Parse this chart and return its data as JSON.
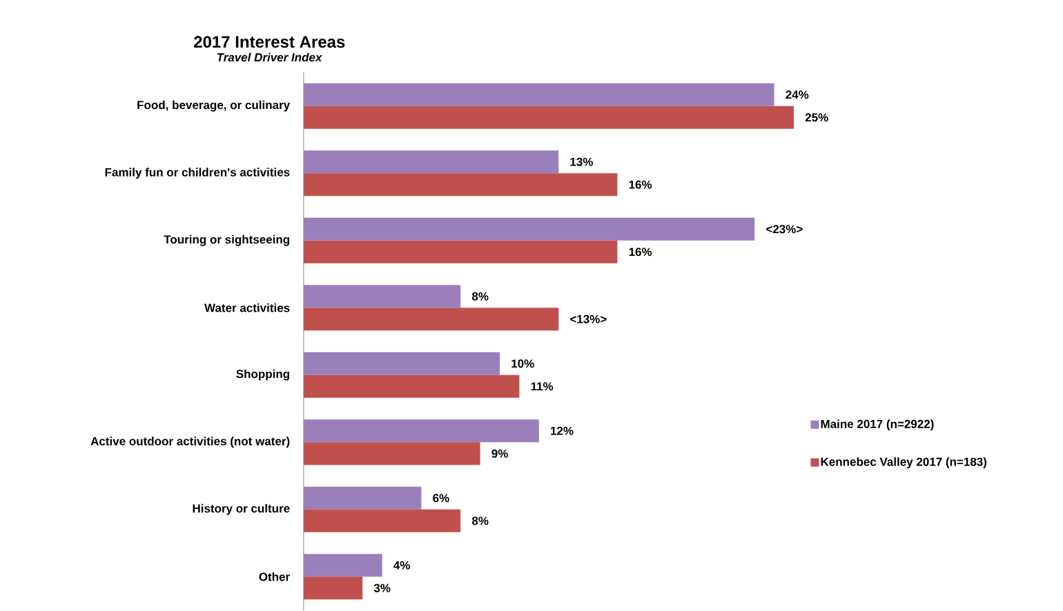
{
  "chart_data": {
    "type": "bar",
    "orientation": "horizontal",
    "title": "2017 Interest Areas",
    "subtitle": "*Travel Driver Index*",
    "categories": [
      "Food, beverage, or culinary",
      "Family fun or children's activities",
      "Touring or sightseeing",
      "Water activities",
      "Shopping",
      "Active outdoor activities (not water)",
      "History or culture",
      "Other"
    ],
    "series": [
      {
        "name": "Maine 2017 (n=2922)",
        "color": "#9b7fbb",
        "values": [
          24,
          13,
          23,
          8,
          10,
          12,
          6,
          4
        ],
        "value_labels": [
          "24%",
          "13%",
          "<23%>",
          "8%",
          "10%",
          "12%",
          "6%",
          "4%"
        ]
      },
      {
        "name": "Kennebec Valley 2017 (n=183)",
        "color": "#c0504d",
        "values": [
          25,
          16,
          16,
          13,
          11,
          9,
          8,
          3
        ],
        "value_labels": [
          "25%",
          "16%",
          "16%",
          "<13%>",
          "11%",
          "9%",
          "8%",
          "3%"
        ]
      }
    ],
    "legend": "right"
  }
}
